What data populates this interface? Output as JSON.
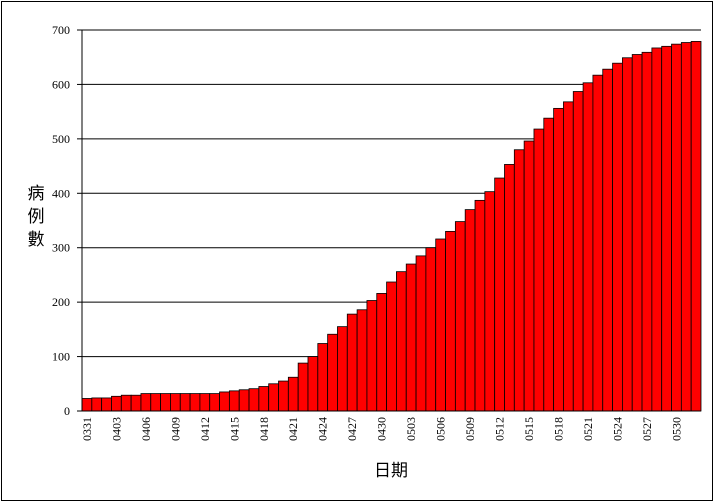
{
  "chart_data": {
    "type": "bar",
    "categories": [
      "0331",
      null,
      null,
      "0403",
      null,
      null,
      "0406",
      null,
      null,
      "0409",
      null,
      null,
      "0412",
      null,
      null,
      "0415",
      null,
      null,
      "0418",
      null,
      null,
      "0421",
      null,
      null,
      "0424",
      null,
      null,
      "0427",
      null,
      null,
      "0430",
      null,
      null,
      "0503",
      null,
      null,
      "0506",
      null,
      null,
      "0509",
      null,
      null,
      "0512",
      null,
      null,
      "0515",
      null,
      null,
      "0518",
      null,
      null,
      "0521",
      null,
      null,
      "0524",
      null,
      null,
      "0527",
      null,
      null,
      "0530",
      null,
      null
    ],
    "values": [
      23,
      24,
      24,
      27,
      29,
      29,
      32,
      32,
      32,
      32,
      32,
      32,
      32,
      32,
      35,
      37,
      39,
      41,
      45,
      50,
      55,
      62,
      88,
      100,
      124,
      141,
      155,
      178,
      186,
      203,
      216,
      237,
      256,
      270,
      285,
      300,
      316,
      330,
      348,
      370,
      387,
      403,
      428,
      453,
      480,
      496,
      518,
      538,
      556,
      568,
      587,
      603,
      617,
      628,
      639,
      649,
      655,
      659,
      667,
      670,
      674,
      677,
      679
    ],
    "color": "#ff0000",
    "ylim": [
      0,
      700
    ],
    "yticks": [
      0,
      100,
      200,
      300,
      400,
      500,
      600,
      700
    ],
    "grid": true,
    "ylabel": "病例數",
    "xlabel": "日期"
  }
}
